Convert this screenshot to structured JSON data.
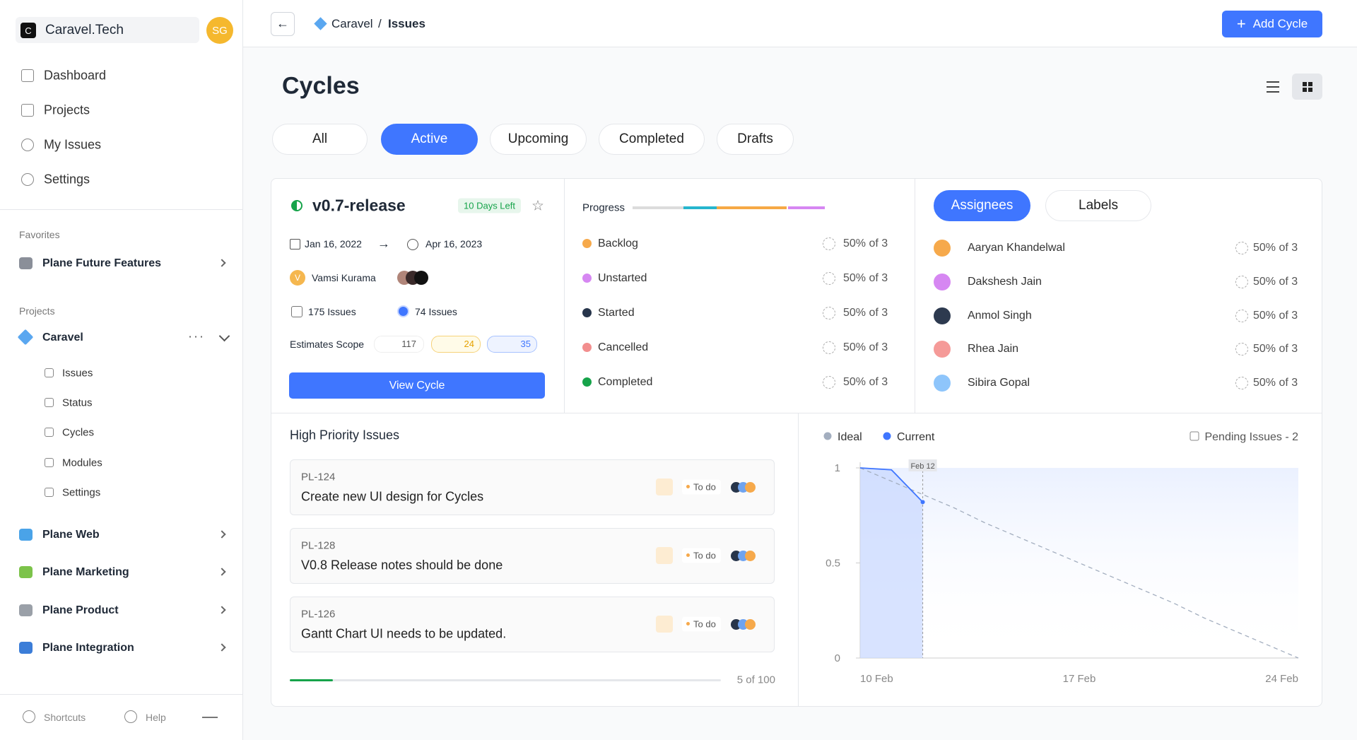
{
  "sidebar": {
    "workspace_initial": "C",
    "workspace": "Caravel.Tech",
    "avatar": "SG",
    "nav": [
      "Dashboard",
      "Projects",
      "My Issues",
      "Settings"
    ],
    "favorites_heading": "Favorites",
    "favorites": [
      "Plane Future Features"
    ],
    "projects_heading": "Projects",
    "project": "Caravel",
    "project_nav": [
      "Issues",
      "Status",
      "Cycles",
      "Modules",
      "Settings"
    ],
    "other_projects": [
      "Plane Web",
      "Plane Marketing",
      "Plane Product",
      "Plane Integration"
    ],
    "footer": [
      "Shortcuts",
      "Help"
    ]
  },
  "header": {
    "breadcrumb": [
      "Caravel",
      "Issues"
    ],
    "separator": "/",
    "add_button": "Add Cycle"
  },
  "page": {
    "title": "Cycles",
    "tabs": [
      "All",
      "Active",
      "Upcoming",
      "Completed",
      "Drafts"
    ],
    "active_tab": "Active"
  },
  "cycle": {
    "name": "v0.7-release",
    "days_left": "10 Days Left",
    "start": "Jan 16, 2022",
    "end": "Apr 16, 2023",
    "lead_initial": "V",
    "lead": "Vamsi Kurama",
    "total_issues": "175 Issues",
    "my_issues": "74 Issues",
    "estimates_label": "Estimates Scope",
    "estimates": [
      "117",
      "24",
      "35"
    ],
    "view_button": "View Cycle"
  },
  "progress": {
    "label": "Progress",
    "states": [
      {
        "name": "Backlog",
        "value": "50% of 3",
        "color": "#f6a94b"
      },
      {
        "name": "Unstarted",
        "value": "50% of 3",
        "color": "#d687f2"
      },
      {
        "name": "Started",
        "value": "50% of 3",
        "color": "#27354b"
      },
      {
        "name": "Cancelled",
        "value": "50% of 3",
        "color": "#f28e8e"
      },
      {
        "name": "Completed",
        "value": "50% of 3",
        "color": "#16a34a"
      }
    ]
  },
  "assignees": {
    "tabs": [
      "Assignees",
      "Labels"
    ],
    "active_tab": "Assignees",
    "people": [
      {
        "name": "Aaryan Khandelwal",
        "value": "50% of 3",
        "color": "#f6a94b"
      },
      {
        "name": "Dakshesh Jain",
        "value": "50% of 3",
        "color": "#d687f2"
      },
      {
        "name": "Anmol Singh",
        "value": "50% of 3",
        "color": "#2d3a4f"
      },
      {
        "name": "Rhea Jain",
        "value": "50% of 3",
        "color": "#f59a98"
      },
      {
        "name": "Sibira Gopal",
        "value": "50% of 3",
        "color": "#8ec5fb"
      }
    ]
  },
  "high_priority": {
    "title": "High Priority Issues",
    "issues": [
      {
        "id": "PL-124",
        "title": "Create new UI design for Cycles",
        "state": "To do"
      },
      {
        "id": "PL-128",
        "title": "V0.8 Release notes should be done",
        "state": "To do"
      },
      {
        "id": "PL-126",
        "title": "Gantt Chart UI needs to be updated.",
        "state": "To do"
      }
    ],
    "progress_label": "5 of 100"
  },
  "chart_data": {
    "type": "line",
    "pending": "Pending Issues - 2",
    "annotation": "Feb 12",
    "categories": [
      "10 Feb",
      null,
      null,
      null,
      null,
      null,
      null,
      "17 Feb",
      null,
      null,
      null,
      null,
      null,
      null,
      "24 Feb"
    ],
    "series": [
      {
        "name": "Ideal",
        "color": "#a3aebf",
        "values": [
          1,
          0.93,
          0.86,
          0.79,
          0.71,
          0.64,
          0.57,
          0.5,
          0.43,
          0.36,
          0.29,
          0.21,
          0.14,
          0.07,
          0
        ]
      },
      {
        "name": "Current",
        "color": "#3f76ff",
        "values": [
          1,
          0.99,
          0.82,
          null,
          null,
          null,
          null,
          null,
          null,
          null,
          null,
          null,
          null,
          null,
          null
        ]
      }
    ],
    "ylim": [
      0,
      1
    ],
    "yticks": [
      0,
      0.5,
      1
    ],
    "grid": false
  }
}
